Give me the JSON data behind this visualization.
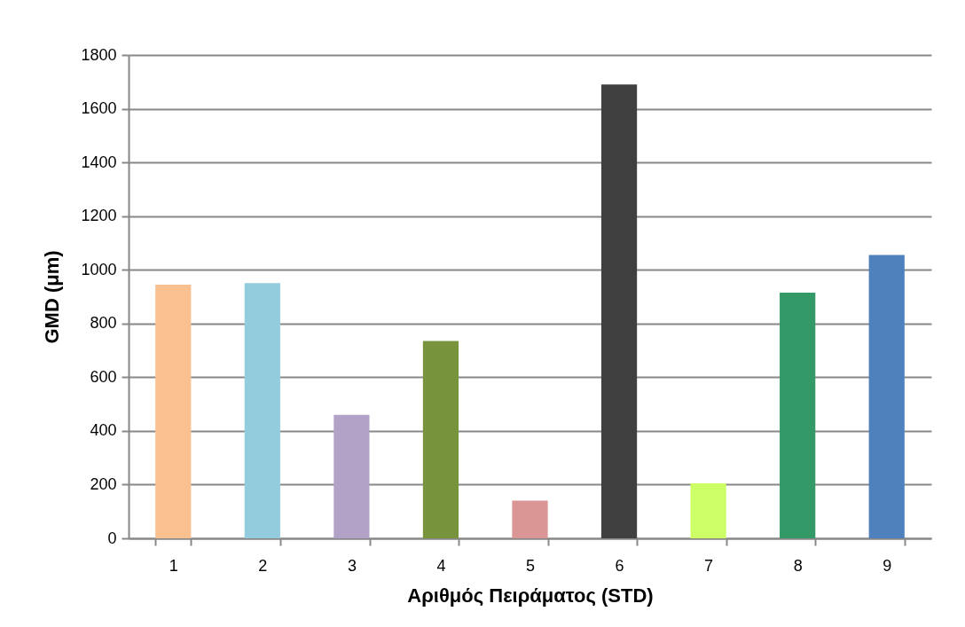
{
  "chart_data": {
    "type": "bar",
    "categories": [
      "1",
      "2",
      "3",
      "4",
      "5",
      "6",
      "7",
      "8",
      "9"
    ],
    "values": [
      945,
      950,
      460,
      735,
      140,
      1690,
      205,
      915,
      1055
    ],
    "colors": [
      "#fac090",
      "#93cddd",
      "#b3a2c7",
      "#77933c",
      "#d99694",
      "#404040",
      "#ccff66",
      "#339966",
      "#4f81bd"
    ],
    "xlabel": "Αριθμός Πειράματος (STD)",
    "ylabel": "GMD (μm)",
    "ylim": [
      0,
      1800
    ],
    "yticks": [
      0,
      200,
      400,
      600,
      800,
      1000,
      1200,
      1400,
      1600,
      1800
    ],
    "grid": "y"
  }
}
